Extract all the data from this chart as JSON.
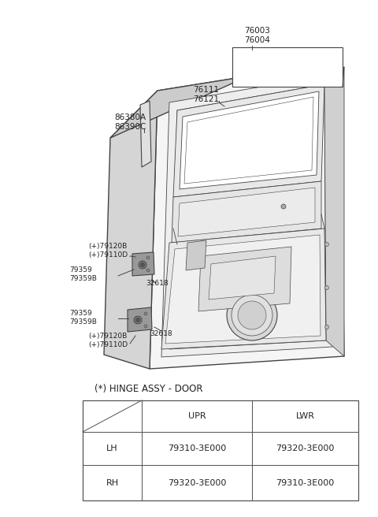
{
  "bg_color": "white",
  "title": "(*) HINGE ASSY - DOOR",
  "table_headers": [
    "",
    "UPR",
    "LWR"
  ],
  "table_rows": [
    [
      "LH",
      "79310-3E000",
      "79320-3E000"
    ],
    [
      "RH",
      "79320-3E000",
      "79310-3E000"
    ]
  ],
  "line_color": "#444444",
  "text_color": "#222222",
  "table_line_color": "#555555",
  "font_size_label": 6.5,
  "font_size_table": 8.0,
  "font_size_title": 8.5,
  "door_fill": "#f0f0f0",
  "door_inner_fill": "#e8e8e8",
  "door_edge_fill": "#d8d8d8"
}
